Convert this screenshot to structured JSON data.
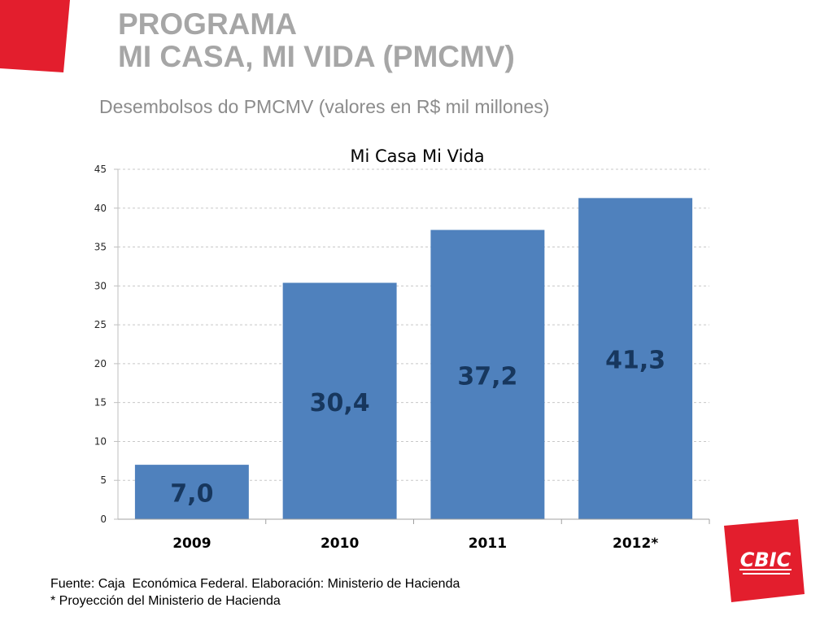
{
  "header": {
    "title_line1": "PROGRAMA",
    "title_line2": "MI CASA, MI VIDA (PMCMV)",
    "subtitle": "Desembolsos do PMCMV (valores en R$ mil millones)"
  },
  "chart_data": {
    "type": "bar",
    "title": "Mi Casa Mi Vida",
    "categories": [
      "2009",
      "2010",
      "2011",
      "2012*"
    ],
    "values": [
      7.0,
      30.4,
      37.2,
      41.3
    ],
    "data_labels": [
      "7,0",
      "30,4",
      "37,2",
      "41,3"
    ],
    "xlabel": "",
    "ylabel": "",
    "ylim": [
      0,
      45
    ],
    "yticks": [
      0,
      5,
      10,
      15,
      20,
      25,
      30,
      35,
      40,
      45
    ],
    "grid": true,
    "legend": "none",
    "bar_color": "#4f81bd"
  },
  "footer": {
    "source": "Fuente: Caja  Económica Federal. Elaboración: Ministerio de Hacienda",
    "note": "* Proyección del Ministerio de Hacienda"
  },
  "logo": {
    "text": "CBIC",
    "color": "#e31e2d"
  },
  "accent_color": "#e31e2d"
}
